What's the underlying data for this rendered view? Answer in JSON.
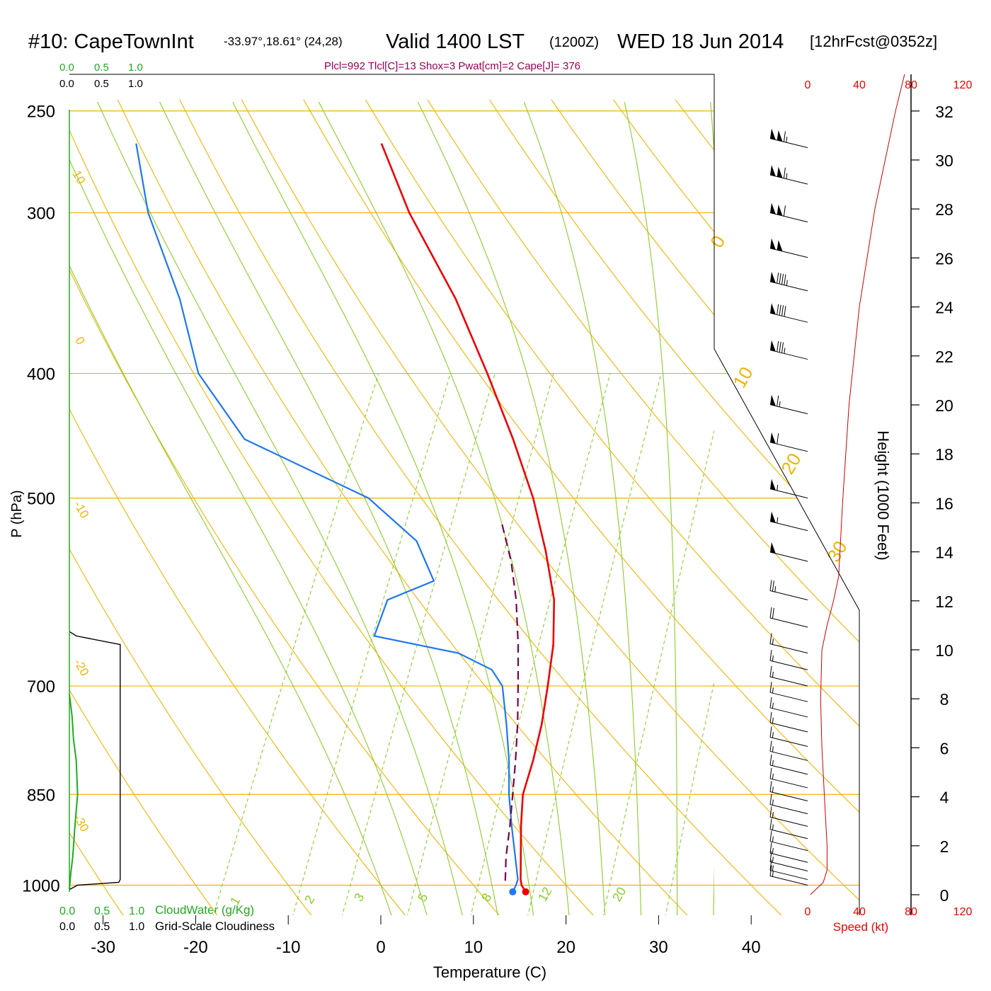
{
  "header": {
    "station": "#10: CapeTownInt",
    "coords": "-33.97°,18.61° (24,28)",
    "valid": "Valid 1400 LST",
    "utc": "(1200Z)",
    "date": "WED 18 Jun 2014",
    "forecast": "[12hrFcst@0352z]"
  },
  "indices": "Plcl=992 Tlcl[C]=13 Shox=3 Pwat[cm]=2 Cape[J]= 376",
  "cloud_scale": {
    "cloudwater_ticks": [
      "0.0",
      "0.5",
      "1.0"
    ],
    "cloudiness_ticks": [
      "0.0",
      "0.5",
      "1.0"
    ],
    "cloudwater_label": "CloudWater (g/Kg)",
    "cloudiness_label": "Grid-Scale Cloudiness"
  },
  "speed_axis": {
    "ticks": [
      "0",
      "40",
      "80",
      "120"
    ],
    "label": "Speed (kt)"
  },
  "height_axis": {
    "label": "Height (1000 Feet)",
    "ticks": [
      "0",
      "2",
      "4",
      "6",
      "8",
      "10",
      "12",
      "14",
      "16",
      "18",
      "20",
      "22",
      "24",
      "26",
      "28",
      "30",
      "32"
    ]
  },
  "colors": {
    "isobar": "#f0b400",
    "dry_adiabat": "#f0b400",
    "moist_adiabat": "#8ccc28",
    "mixing_ratio": "#8ccc28",
    "temperature": "#ee0000",
    "dewpoint": "#1e78ee",
    "parcel": "#7a0050",
    "cloudwater": "#22aa22",
    "cloudiness": "#000000",
    "wind_speed": "#cc0000",
    "indices_text": "#990055"
  },
  "chart_data": {
    "type": "skew-t",
    "ylabel": "P (hPa)",
    "xlabel": "Temperature (C)",
    "pressure_ticks": [
      250,
      300,
      400,
      500,
      700,
      850,
      1000
    ],
    "temperature_ticks": [
      -30,
      -20,
      -10,
      0,
      10,
      20,
      30,
      40
    ],
    "plim": [
      1050,
      250
    ],
    "dry_adiabat_labels": [
      "10",
      "0",
      "-10",
      "-20",
      "-30",
      "0",
      "10",
      "20",
      "30"
    ],
    "mixing_ratio_labels": [
      "1",
      "2",
      "3",
      "5",
      "8",
      "12",
      "20"
    ],
    "series": [
      {
        "name": "Temperature",
        "points": [
          [
            1012,
            16.0
          ],
          [
            1000,
            15.2
          ],
          [
            990,
            14.8
          ],
          [
            900,
            12.0
          ],
          [
            850,
            10.5
          ],
          [
            800,
            9.8
          ],
          [
            750,
            8.8
          ],
          [
            700,
            7.4
          ],
          [
            650,
            5.8
          ],
          [
            600,
            3.5
          ],
          [
            550,
            0.0
          ],
          [
            500,
            -4.2
          ],
          [
            450,
            -9.5
          ],
          [
            400,
            -15.8
          ],
          [
            350,
            -23.2
          ],
          [
            300,
            -32.8
          ],
          [
            265,
            -39.5
          ]
        ]
      },
      {
        "name": "Dewpoint",
        "points": [
          [
            1012,
            14.6
          ],
          [
            1000,
            14.6
          ],
          [
            990,
            14.5
          ],
          [
            900,
            11.0
          ],
          [
            850,
            9.0
          ],
          [
            800,
            7.2
          ],
          [
            750,
            5.0
          ],
          [
            700,
            2.5
          ],
          [
            680,
            0.5
          ],
          [
            660,
            -4.0
          ],
          [
            640,
            -14.0
          ],
          [
            600,
            -14.5
          ],
          [
            580,
            -10.5
          ],
          [
            540,
            -14.5
          ],
          [
            500,
            -22.0
          ],
          [
            450,
            -38.5
          ],
          [
            400,
            -47.0
          ],
          [
            350,
            -53.0
          ],
          [
            300,
            -61.0
          ],
          [
            265,
            -66.0
          ]
        ]
      },
      {
        "name": "Parcel",
        "points": [
          [
            992,
            13.2
          ],
          [
            950,
            12.0
          ],
          [
            900,
            10.8
          ],
          [
            850,
            9.4
          ],
          [
            800,
            7.9
          ],
          [
            750,
            6.2
          ],
          [
            700,
            4.2
          ],
          [
            650,
            2.0
          ],
          [
            600,
            -0.6
          ],
          [
            560,
            -3.2
          ],
          [
            520,
            -6.5
          ]
        ]
      }
    ],
    "surface_points": [
      {
        "name": "Surface temperature",
        "p": 1012,
        "t": 16.0
      },
      {
        "name": "Surface dewpoint",
        "p": 1012,
        "t": 14.6
      }
    ],
    "cloud_water": [
      [
        1008,
        0.0
      ],
      [
        980,
        0.02
      ],
      [
        950,
        0.05
      ],
      [
        900,
        0.08
      ],
      [
        850,
        0.12
      ],
      [
        800,
        0.1
      ],
      [
        770,
        0.06
      ],
      [
        740,
        0.04
      ],
      [
        710,
        0.0
      ]
    ],
    "cloudiness": [
      [
        1008,
        0.0
      ],
      [
        1000,
        0.12
      ],
      [
        995,
        0.72
      ],
      [
        990,
        0.74
      ],
      [
        650,
        0.74
      ],
      [
        640,
        0.1
      ],
      [
        635,
        0.0
      ]
    ],
    "wind_speed_profile": [
      [
        0,
        2
      ],
      [
        0.5,
        12
      ],
      [
        1,
        15
      ],
      [
        2,
        15
      ],
      [
        4,
        13
      ],
      [
        6,
        11
      ],
      [
        8,
        10
      ],
      [
        10,
        11
      ],
      [
        11,
        15
      ],
      [
        12,
        20
      ],
      [
        13,
        24
      ],
      [
        16,
        27
      ],
      [
        20,
        32
      ],
      [
        24,
        40
      ],
      [
        28,
        52
      ],
      [
        32,
        68
      ],
      [
        33.5,
        75
      ]
    ],
    "wind_barbs": [
      {
        "p": 1000,
        "speed": 15
      },
      {
        "p": 990,
        "speed": 15
      },
      {
        "p": 975,
        "speed": 15
      },
      {
        "p": 960,
        "speed": 15
      },
      {
        "p": 940,
        "speed": 15
      },
      {
        "p": 920,
        "speed": 15
      },
      {
        "p": 900,
        "speed": 15
      },
      {
        "p": 880,
        "speed": 15
      },
      {
        "p": 860,
        "speed": 15
      },
      {
        "p": 840,
        "speed": 15
      },
      {
        "p": 820,
        "speed": 15
      },
      {
        "p": 800,
        "speed": 15
      },
      {
        "p": 780,
        "speed": 15
      },
      {
        "p": 760,
        "speed": 15
      },
      {
        "p": 740,
        "speed": 15
      },
      {
        "p": 720,
        "speed": 15
      },
      {
        "p": 700,
        "speed": 15
      },
      {
        "p": 680,
        "speed": 15
      },
      {
        "p": 660,
        "speed": 15
      },
      {
        "p": 630,
        "speed": 20
      },
      {
        "p": 600,
        "speed": 25
      },
      {
        "p": 560,
        "speed": 50
      },
      {
        "p": 530,
        "speed": 55
      },
      {
        "p": 500,
        "speed": 55
      },
      {
        "p": 460,
        "speed": 60
      },
      {
        "p": 430,
        "speed": 65
      },
      {
        "p": 390,
        "speed": 85
      },
      {
        "p": 365,
        "speed": 90
      },
      {
        "p": 345,
        "speed": 95
      },
      {
        "p": 325,
        "speed": 100
      },
      {
        "p": 305,
        "speed": 110
      },
      {
        "p": 285,
        "speed": 115
      },
      {
        "p": 267,
        "speed": 115
      }
    ]
  }
}
